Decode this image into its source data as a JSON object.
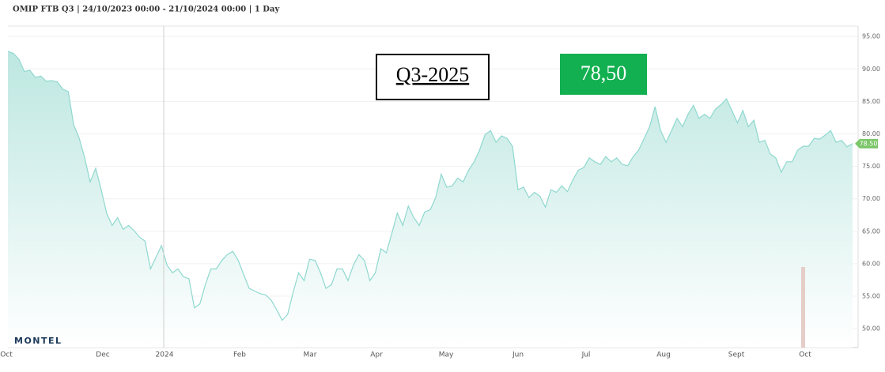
{
  "chart_data": {
    "type": "area",
    "title": "OMIP FTB Q3 | 24/10/2023 00:00 - 21/10/2024 00:00 | 1 Day",
    "product_label": "Q3-2025",
    "price_label": "78,50",
    "logo": "MONTEL",
    "color": "#8fd8cf",
    "grid": true,
    "x_labels": [
      "Oct",
      "Dec",
      "2024",
      "Feb",
      "Mar",
      "Apr",
      "May",
      "Jun",
      "Jul",
      "Aug",
      "Sept",
      "Oct"
    ],
    "values": [
      92.7,
      92.4,
      91.5,
      89.6,
      89.8,
      88.7,
      88.9,
      88.1,
      88.2,
      88.0,
      86.9,
      86.5,
      81.4,
      79.3,
      76.3,
      72.6,
      74.7,
      71.4,
      67.8,
      65.9,
      67.1,
      65.3,
      65.9,
      65.1,
      64.1,
      63.5,
      59.2,
      61.0,
      62.8,
      59.8,
      58.6,
      59.2,
      58.0,
      57.7,
      53.2,
      53.8,
      56.8,
      59.2,
      59.2,
      60.5,
      61.4,
      61.9,
      60.5,
      58.3,
      56.2,
      55.8,
      55.4,
      55.2,
      54.4,
      52.9,
      51.3,
      52.2,
      55.6,
      58.6,
      57.4,
      60.7,
      60.5,
      58.6,
      56.2,
      56.8,
      59.2,
      59.2,
      57.4,
      59.8,
      61.4,
      60.5,
      57.4,
      58.6,
      62.3,
      61.7,
      64.7,
      67.8,
      65.9,
      68.9,
      67.1,
      65.9,
      68.0,
      68.3,
      70.2,
      73.8,
      71.8,
      72.0,
      73.2,
      72.6,
      74.4,
      75.7,
      77.5,
      79.9,
      80.5,
      78.7,
      79.7,
      79.3,
      78.1,
      71.4,
      71.8,
      70.2,
      71.0,
      70.4,
      68.7,
      71.4,
      71.0,
      72.0,
      71.1,
      72.9,
      74.4,
      74.8,
      76.3,
      75.7,
      75.3,
      76.5,
      75.7,
      76.3,
      75.3,
      75.1,
      76.5,
      77.5,
      79.3,
      81.1,
      84.2,
      80.5,
      78.7,
      80.5,
      82.4,
      81.1,
      83.0,
      84.4,
      82.4,
      83.0,
      82.4,
      83.8,
      84.5,
      85.4,
      83.6,
      81.7,
      83.6,
      81.1,
      82.1,
      78.7,
      79.0,
      76.9,
      76.3,
      74.1,
      75.7,
      75.7,
      77.5,
      78.1,
      78.1,
      79.3,
      79.2,
      79.8,
      80.5,
      78.7,
      79.0,
      78.0,
      78.5
    ],
    "last_label": {
      "value": 78.5,
      "label": "78.50"
    },
    "ylim": [
      47.1,
      96.6
    ],
    "yticks": [
      {
        "value": 50,
        "label": "50.00"
      },
      {
        "value": 55,
        "label": "55.00"
      },
      {
        "value": 60,
        "label": "60.00"
      },
      {
        "value": 65,
        "label": "65.00"
      },
      {
        "value": 70,
        "label": "70.00"
      },
      {
        "value": 75,
        "label": "75.00"
      },
      {
        "value": 80,
        "label": "80.00"
      },
      {
        "value": 85,
        "label": "85.00"
      },
      {
        "value": 90,
        "label": "90.00"
      },
      {
        "value": 95,
        "label": "95.00"
      }
    ]
  }
}
